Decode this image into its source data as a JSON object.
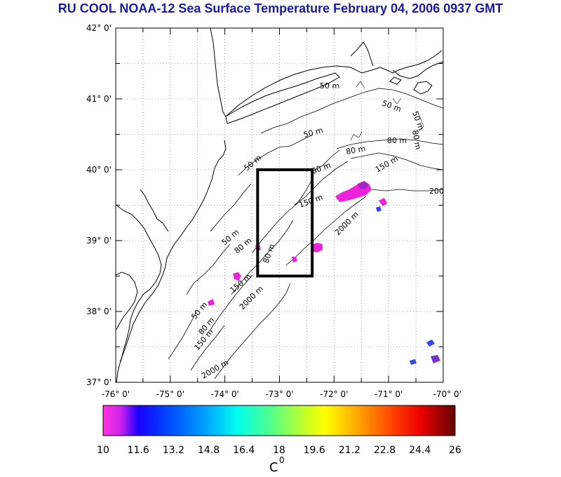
{
  "title": "RU COOL  NOAA-12 Sea Surface Temperature February 04, 2006 0937 GMT",
  "colors": {
    "title": "#1a1aa6",
    "coast": "#000000",
    "grid": "#555555",
    "box": "#000000",
    "patch_magenta": "#ee22dd",
    "patch_purple": "#7733cc",
    "patch_blue": "#3344ee"
  },
  "map": {
    "lat_labels": [
      "42° 0'",
      "41° 0'",
      "40° 0'",
      "39° 0'",
      "38° 0'",
      "37° 0'"
    ],
    "lon_labels": [
      "-76° 0'",
      "-75° 0'",
      "-74° 0'",
      "-73° 0'",
      "-72° 0'",
      "-71° 0'",
      "-70° 0'"
    ],
    "lat_range": [
      37,
      42
    ],
    "lon_range": [
      -76,
      -70
    ],
    "study_box": {
      "lon": [
        -73.4,
        -72.4
      ],
      "lat": [
        38.5,
        40.0
      ]
    },
    "contour_labels": [
      {
        "text": "50 m"
      },
      {
        "text": "50 m"
      },
      {
        "text": "50 m"
      },
      {
        "text": "50 m"
      },
      {
        "text": "50 m"
      },
      {
        "text": "50 m"
      },
      {
        "text": "50 m"
      },
      {
        "text": "80 m"
      },
      {
        "text": "80 m"
      },
      {
        "text": "80 m"
      },
      {
        "text": "80 m"
      },
      {
        "text": "80 m"
      },
      {
        "text": "80 m"
      },
      {
        "text": "80 m"
      },
      {
        "text": "150 m"
      },
      {
        "text": "150 m"
      },
      {
        "text": "150 m"
      },
      {
        "text": "150 m"
      },
      {
        "text": "2000 m"
      },
      {
        "text": "2000 m"
      },
      {
        "text": "2000 m"
      },
      {
        "text": "200"
      }
    ]
  },
  "colorbar": {
    "min": 10,
    "max": 26,
    "tick_labels": [
      "10",
      "11.6",
      "13.2",
      "14.8",
      "16.4",
      "18",
      "19.6",
      "21.2",
      "22.8",
      "24.4",
      "26"
    ],
    "unit_label": "C",
    "unit_superscript": "0"
  }
}
